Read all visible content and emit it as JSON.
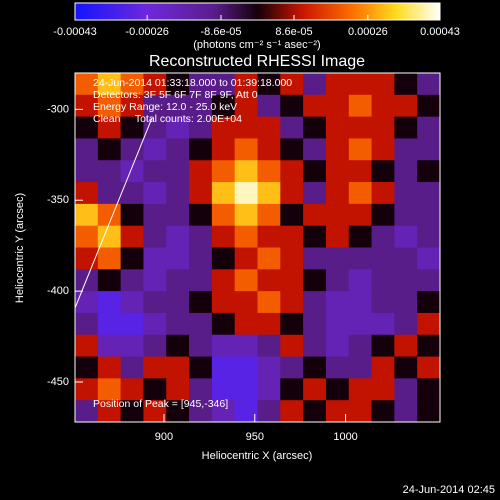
{
  "chart_data": {
    "type": "heatmap",
    "title": "Reconstructed RHESSI Image",
    "colorbar_label": "(photons cm⁻² s⁻¹ asec⁻²)",
    "clim": [
      -0.00043,
      0.00043
    ],
    "colorbar_ticks": [
      -0.00043,
      -0.00026,
      {
        "value": -8.6e-05,
        "label": "-8.6e-05"
      },
      {
        "value": 8.6e-05,
        "label": "8.6e-05"
      },
      0.00026,
      0.00043
    ],
    "x_label": "Heliocentric X (arcsec)",
    "y_label": "Heliocentric Y (arcsec)",
    "xlim": [
      851,
      1052
    ],
    "ylim": [
      -472,
      -280
    ],
    "xticks": [
      900,
      950,
      1000
    ],
    "yticks": [
      -300,
      -350,
      -400,
      -450
    ],
    "annotations": [
      "24-Jun-2014 01:33:18.000 to 01:39:18.000",
      "Detectors: 3F 5F 6F 7F 8F 9F, Att 0",
      "Energy Range: 12.0 - 25.0 keV",
      "Clean     Total counts: 2.00E+04"
    ],
    "peak_label": "Position of Peak = [945,-346]",
    "timestamp": "24-Jun-2014 02:45",
    "z": [
      [
        0.0002,
        0.0003,
        0.0002,
        0.0001,
        0,
        -0.0001,
        -0.0001,
        0.0001,
        0,
        0.0001,
        -0.0001,
        0.0001,
        0.0001,
        0.0001,
        0,
        -0.0001
      ],
      [
        0.0001,
        0.0002,
        0.0001,
        -0.0001,
        -0.0001,
        -0.0001,
        0,
        0.0001,
        -0.0001,
        0,
        0.0001,
        0.0001,
        0.0002,
        0.0001,
        0.0001,
        0
      ],
      [
        0,
        0.0001,
        0,
        -0.0001,
        -0.00018,
        -0.0001,
        0.0001,
        0.0001,
        0.0001,
        -0.0001,
        0,
        0.0001,
        0.0001,
        0.0001,
        0,
        -0.0001
      ],
      [
        -0.0001,
        0,
        -0.0001,
        -0.00018,
        -0.0001,
        0,
        0.0001,
        0.0002,
        0.0001,
        0,
        -0.0001,
        0.0001,
        0.0002,
        0.0001,
        -0.0001,
        -0.0001
      ],
      [
        -0.0001,
        -0.0001,
        -0.00018,
        -0.0001,
        -0.0001,
        0.0001,
        0.0002,
        0.0003,
        0.0002,
        0.0001,
        0,
        0.0001,
        0.0001,
        0,
        -0.0001,
        0
      ],
      [
        0.0001,
        -0.0001,
        -0.0001,
        -0.00018,
        -0.0001,
        0.0001,
        0.0003,
        0.0004,
        0.0003,
        0.0001,
        -0.0001,
        0.0001,
        0.0002,
        0.0001,
        -0.0001,
        -0.0001
      ],
      [
        0.0003,
        0.0002,
        0,
        -0.0001,
        -0.0001,
        0,
        0.0002,
        0.0003,
        0.0002,
        0,
        0.0001,
        0.0001,
        0.0001,
        0,
        -0.0001,
        -0.0001
      ],
      [
        0.0002,
        0.0003,
        0.0001,
        -0.0001,
        -0.00018,
        -0.0001,
        0.0001,
        0.0002,
        0.0001,
        0.0001,
        0,
        0.0001,
        0,
        -0.0001,
        -0.00018,
        -0.0001
      ],
      [
        0.0001,
        0.0002,
        0,
        -0.00018,
        -0.00018,
        -0.0001,
        0,
        0.0001,
        0.0002,
        0.0001,
        -0.0001,
        -0.0001,
        -0.0001,
        -0.0001,
        -0.0001,
        -0.00018
      ],
      [
        -0.0001,
        0,
        -0.0001,
        -0.00018,
        -0.0001,
        -0.0001,
        0.0001,
        0.0002,
        0.0001,
        0.0001,
        0,
        -0.0001,
        -0.00018,
        -0.0001,
        -0.0001,
        -0.0001
      ],
      [
        -0.00018,
        -0.0003,
        -0.00018,
        -0.0001,
        -0.0001,
        0,
        0.0001,
        0.0001,
        0.0002,
        0.0001,
        -0.0001,
        -0.00018,
        -0.00018,
        -0.0001,
        -0.0001,
        0
      ],
      [
        -0.0001,
        -0.0003,
        -0.0003,
        -0.00018,
        -0.0001,
        -0.0001,
        0,
        0.0001,
        0.0001,
        0,
        -0.0001,
        -0.00018,
        -0.00018,
        -0.00018,
        -0.0001,
        0.0001
      ],
      [
        0.0001,
        -0.00018,
        -0.00018,
        -0.0001,
        0,
        -0.0001,
        -0.00018,
        -0.00018,
        -0.0001,
        0.0001,
        -0.0001,
        -0.00018,
        -0.0001,
        0,
        0.0001,
        0
      ],
      [
        0,
        0.0001,
        -0.0001,
        0.0001,
        0.0001,
        0,
        -0.0003,
        -0.0003,
        -0.00018,
        -0.0001,
        0,
        -0.0001,
        -0.0001,
        0.0001,
        0,
        0.0001
      ],
      [
        0.0001,
        0.0002,
        0.0001,
        0,
        0.0001,
        -0.0001,
        -0.0003,
        -0.0003,
        -0.00018,
        0,
        0.0001,
        0,
        0.0001,
        0.0001,
        -0.0001,
        0
      ],
      [
        -0.0001,
        0.0001,
        0,
        0.0001,
        0,
        -0.0001,
        -0.00018,
        -0.0003,
        -0.0001,
        0.0001,
        0,
        0.0001,
        0.0001,
        0,
        -0.0001,
        0
      ]
    ]
  }
}
